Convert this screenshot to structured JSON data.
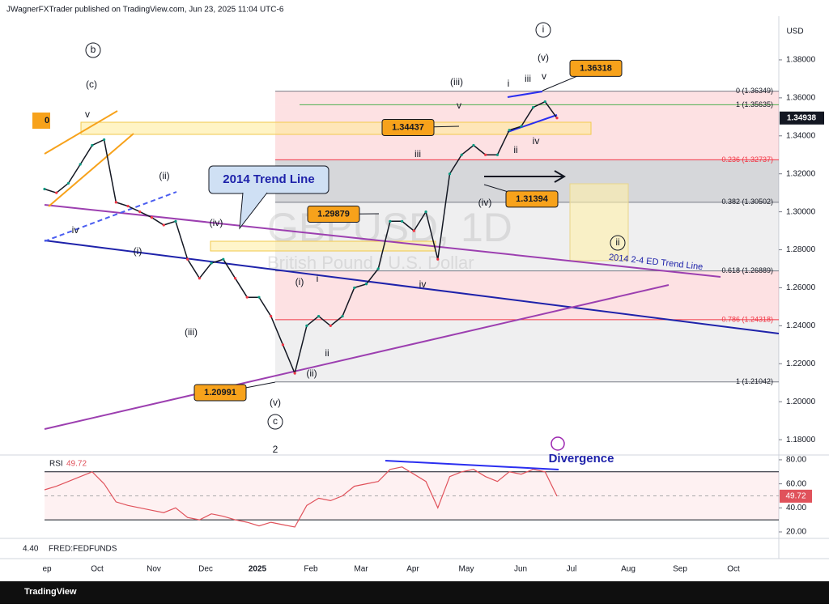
{
  "header": "JWagnerFXTrader published on TradingView.com, Jun 23, 2025 11:04 UTC-6",
  "chart_data": {
    "type": "line",
    "symbol": "GBPUSD, 1D",
    "description": "British Pound / U.S. Dollar",
    "currency": "USD",
    "series": [
      {
        "name": "GBPUSD",
        "color": "#131722",
        "values": [
          1.312,
          1.31,
          1.315,
          1.325,
          1.335,
          1.338,
          1.305,
          1.303,
          1.3,
          1.297,
          1.293,
          1.295,
          1.275,
          1.265,
          1.273,
          1.275,
          1.265,
          1.255,
          1.255,
          1.245,
          1.23,
          1.215,
          1.24,
          1.245,
          1.24,
          1.245,
          1.26,
          1.262,
          1.27,
          1.295,
          1.295,
          1.29,
          1.3,
          1.275,
          1.32,
          1.33,
          1.335,
          1.33,
          1.33,
          1.343,
          1.345,
          1.355,
          1.358,
          1.34938
        ]
      }
    ],
    "ylim": [
      1.1728,
      1.403
    ],
    "yticks": [
      {
        "value": 1.38,
        "label": "1.38000"
      },
      {
        "value": 1.36,
        "label": "1.36000"
      },
      {
        "value": 1.34,
        "label": "1.34000"
      },
      {
        "value": 1.32,
        "label": "1.32000"
      },
      {
        "value": 1.3,
        "label": "1.30000"
      },
      {
        "value": 1.28,
        "label": "1.28000"
      },
      {
        "value": 1.26,
        "label": "1.26000"
      },
      {
        "value": 1.24,
        "label": "1.24000"
      },
      {
        "value": 1.22,
        "label": "1.22000"
      },
      {
        "value": 1.2,
        "label": "1.20000"
      },
      {
        "value": 1.18,
        "label": "1.18000"
      }
    ],
    "last_price": 1.34938,
    "price_tags": [
      1.36318,
      1.34437,
      1.31394,
      1.29879,
      1.20991
    ],
    "cut_tag": "0",
    "fib_levels": [
      {
        "value": 1.36349,
        "label": "0 (1.36349)"
      },
      {
        "value": 1.35635,
        "label": "1 (1.35635)"
      },
      {
        "value": 1.32737,
        "label": "0.236 (1.32737)"
      },
      {
        "value": 1.30502,
        "label": "0.382 (1.30502)"
      },
      {
        "value": 1.26889,
        "label": "0.618 (1.26889)"
      },
      {
        "value": 1.24318,
        "label": "0.786 (1.24318)"
      },
      {
        "value": 1.21042,
        "label": "1 (1.21042)"
      }
    ],
    "x_labels": [
      "ep",
      "Oct",
      "Nov",
      "Dec",
      "2025",
      "Feb",
      "Mar",
      "Apr",
      "May",
      "Jun",
      "Jul",
      "Aug",
      "Sep",
      "Oct"
    ],
    "annotations": [
      "b",
      "(c)",
      "v",
      "(ii)",
      "iv",
      "(iv)",
      "(i)",
      "(iii)",
      "(i)",
      "i",
      "ii",
      "(ii)",
      "(v)",
      "c",
      "2",
      "iii",
      "(iii)",
      "v",
      "(iv)",
      "iv",
      "i",
      "ii",
      "iii",
      "v",
      "(v)",
      "iv",
      "i",
      "ii"
    ],
    "callouts": {
      "trend_line": "2014 Trend Line",
      "ed_trend_line": "2014 2-4 ED Trend Line",
      "divergence": "Divergence"
    },
    "rsi": {
      "label": "RSI",
      "last": 49.72,
      "color": "#e0525b",
      "values": [
        55,
        58,
        62,
        66,
        70,
        60,
        45,
        42,
        40,
        38,
        36,
        40,
        32,
        30,
        35,
        33,
        30,
        28,
        25,
        28,
        26,
        24,
        42,
        48,
        46,
        50,
        58,
        60,
        62,
        72,
        74,
        68,
        62,
        40,
        66,
        70,
        72,
        66,
        62,
        70,
        68,
        72,
        70,
        49.72
      ],
      "ylim": [
        14.6,
        84
      ],
      "yticks": [
        {
          "value": 80,
          "label": "80.00"
        },
        {
          "value": 60,
          "label": "60.00"
        },
        {
          "value": 40,
          "label": "40.00"
        },
        {
          "value": 20,
          "label": "20.00"
        }
      ]
    },
    "fred": {
      "name": "FRED:FEDFUNDS",
      "value": {
        "value": 4.4,
        "label": "4.40"
      }
    }
  },
  "footer": "TradingView"
}
